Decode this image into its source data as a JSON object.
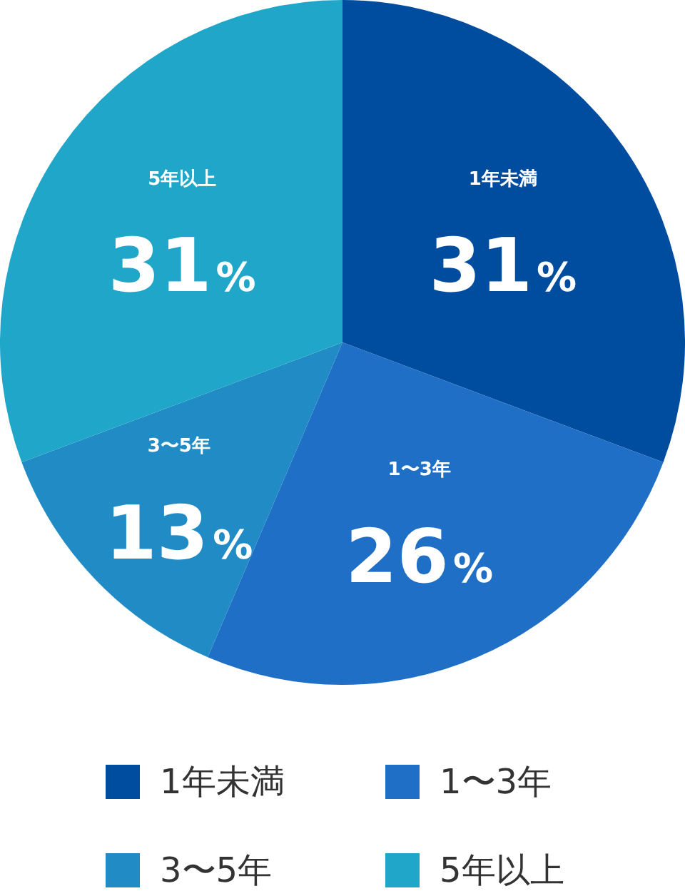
{
  "chart_data": {
    "type": "pie",
    "categories": [
      "1年未満",
      "1〜3年",
      "3〜5年",
      "5年以上"
    ],
    "values": [
      31,
      26,
      13,
      31
    ],
    "colors": [
      "#004da0",
      "#206fc6",
      "#218bc5",
      "#20a6c8"
    ],
    "value_labels": [
      "31%",
      "26%",
      "13%",
      "31%"
    ],
    "legend": "bottom"
  }
}
